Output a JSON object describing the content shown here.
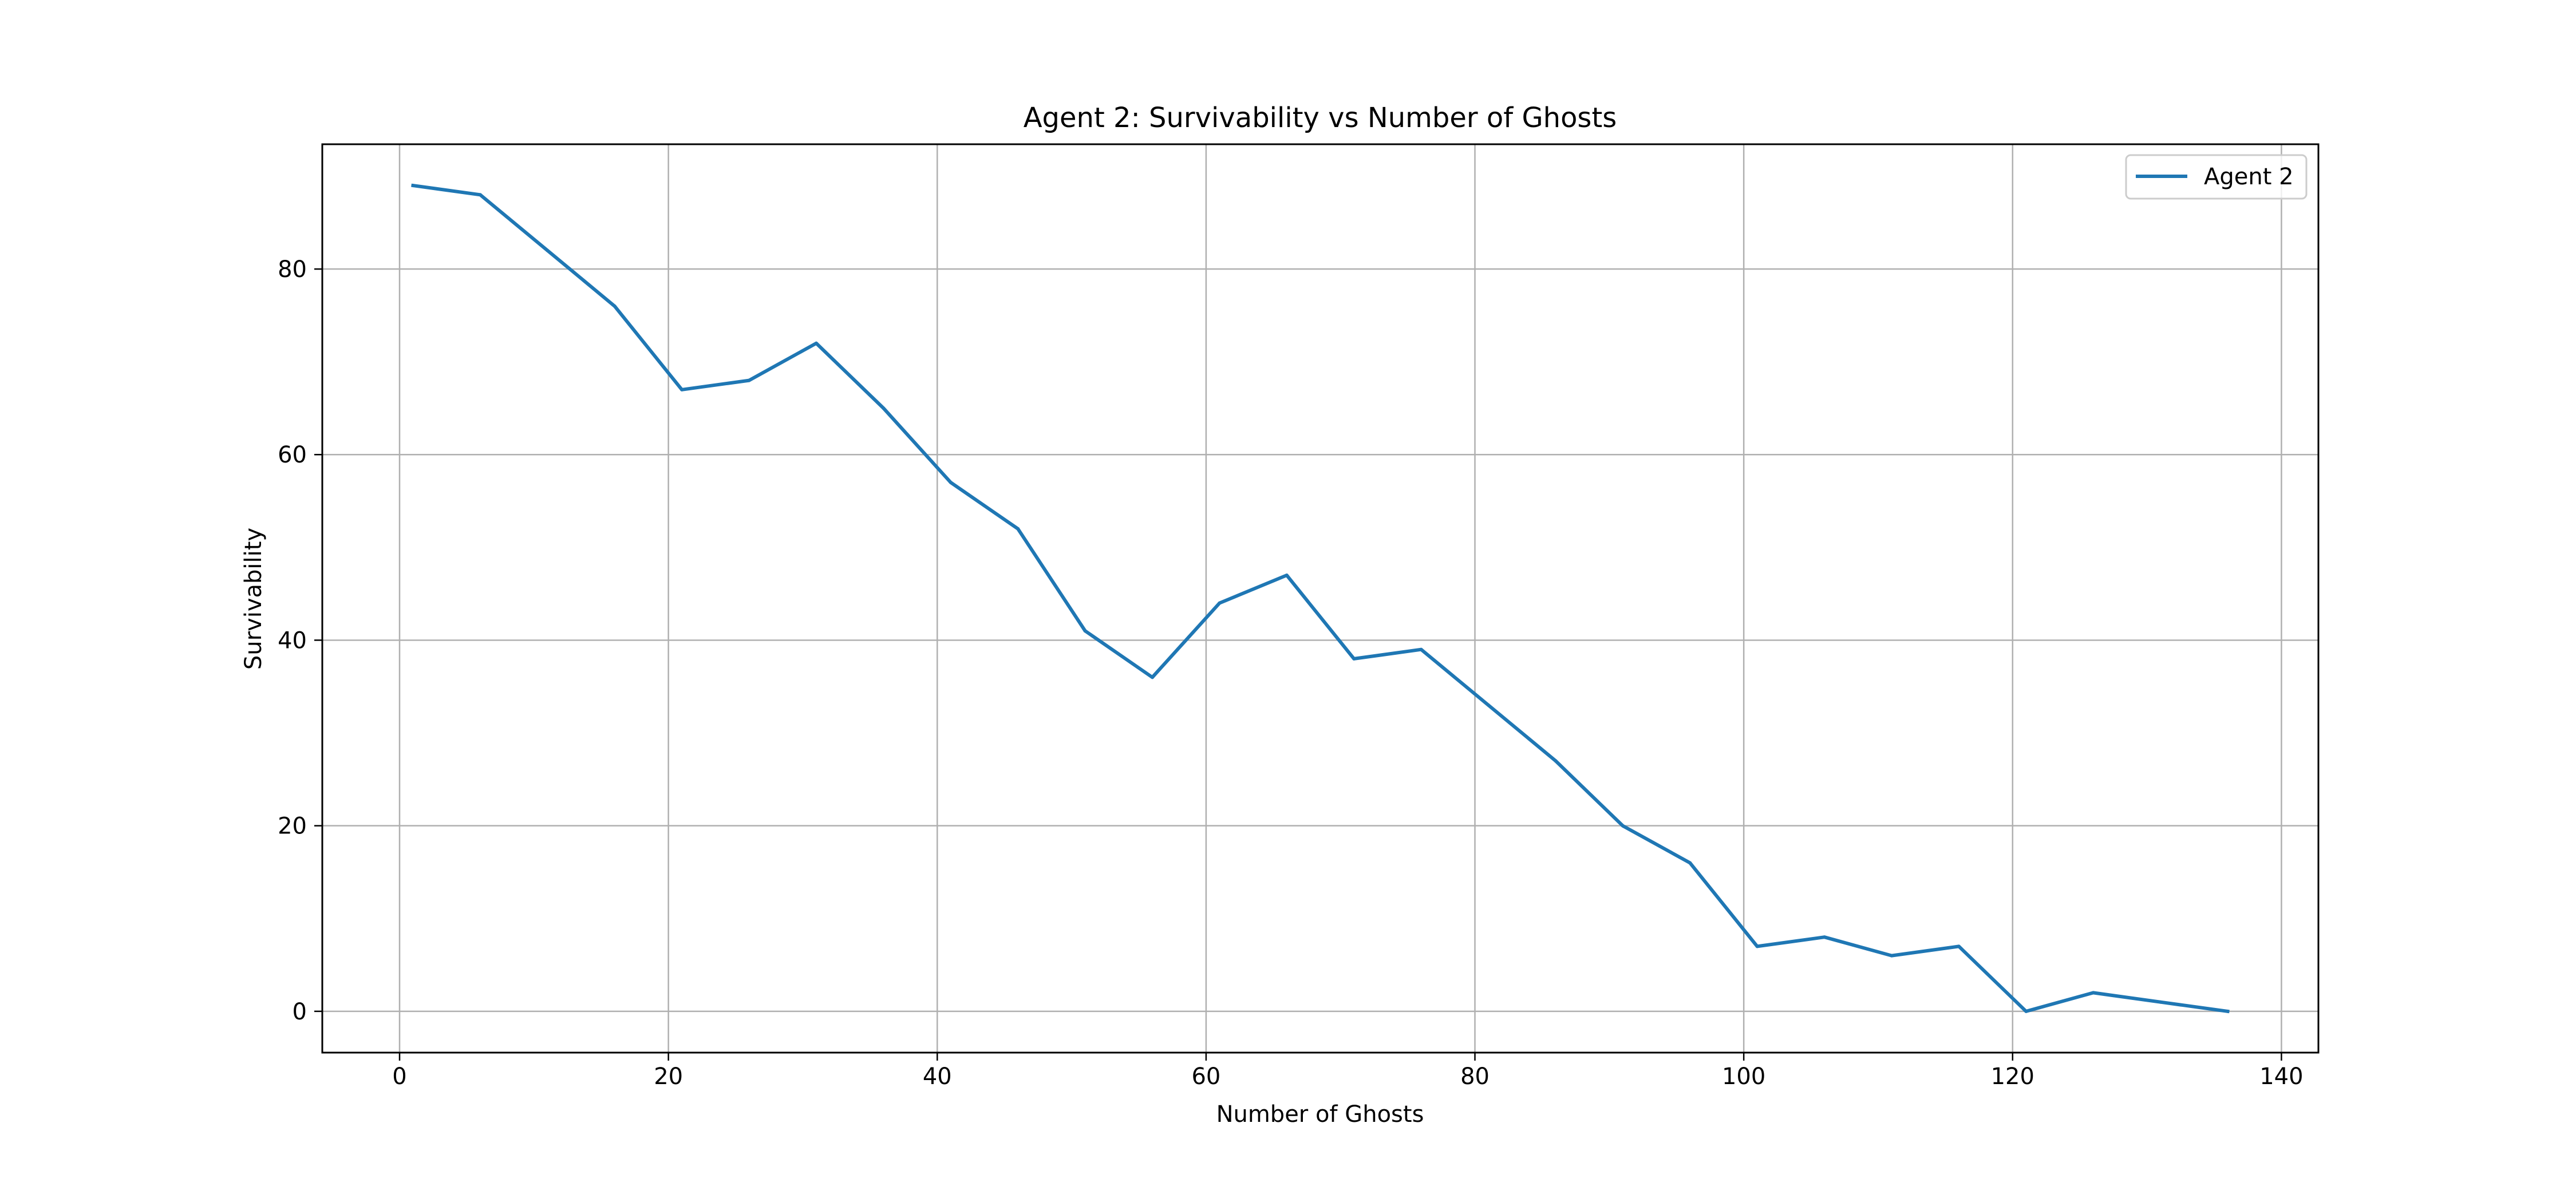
{
  "chart_data": {
    "type": "line",
    "title": "Agent 2: Survivability vs Number of Ghosts",
    "xlabel": "Number of Ghosts",
    "ylabel": "Survivability",
    "xlim": [
      -5.75,
      142.75
    ],
    "ylim": [
      -4.45,
      93.45
    ],
    "xticks": [
      0,
      20,
      40,
      60,
      80,
      100,
      120,
      140
    ],
    "yticks": [
      0,
      20,
      40,
      60,
      80
    ],
    "xtick_labels": [
      "0",
      "20",
      "40",
      "60",
      "80",
      "100",
      "120",
      "140"
    ],
    "ytick_labels": [
      "0",
      "20",
      "40",
      "60",
      "80"
    ],
    "grid": true,
    "legend": {
      "placement": "top-right",
      "entries": [
        "Agent 2"
      ]
    },
    "series": [
      {
        "name": "Agent 2",
        "color": "#1f77b4",
        "x": [
          1,
          6,
          11,
          16,
          21,
          26,
          31,
          36,
          41,
          46,
          51,
          56,
          61,
          66,
          71,
          76,
          81,
          86,
          91,
          96,
          101,
          106,
          111,
          116,
          121,
          126,
          131,
          136
        ],
        "y": [
          89,
          88,
          82,
          76,
          67,
          68,
          72,
          65,
          57,
          52,
          41,
          36,
          44,
          47,
          38,
          39,
          33,
          27,
          20,
          16,
          7,
          8,
          6,
          7,
          0,
          2,
          1,
          0
        ]
      }
    ]
  }
}
